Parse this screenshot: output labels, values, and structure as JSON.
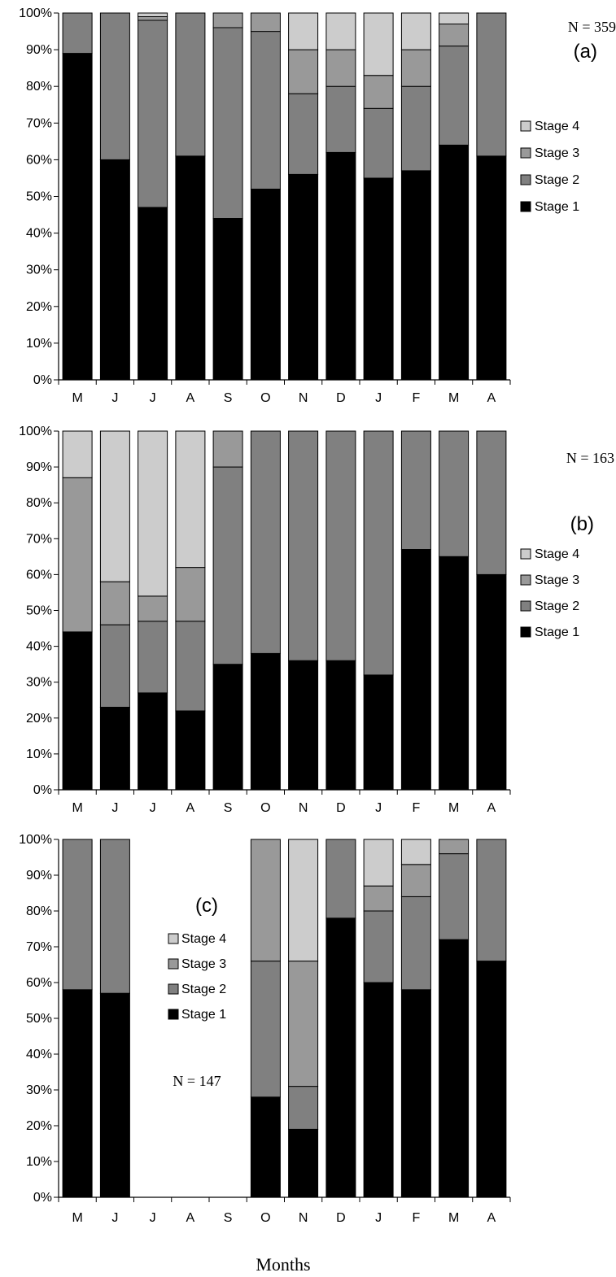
{
  "colors": {
    "stage1": "#000000",
    "stage2": "#808080",
    "stage3": "#999999",
    "stage4": "#cccccc",
    "axis": "#000000"
  },
  "x_title": "Months",
  "chart_data": [
    {
      "type": "bar",
      "stacked": true,
      "panel": "(a)",
      "n_label": "N = 359",
      "categories": [
        "M",
        "J",
        "J",
        "A",
        "S",
        "O",
        "N",
        "D",
        "J",
        "F",
        "M",
        "A"
      ],
      "ylim": [
        0,
        100
      ],
      "yticks": [
        "0%",
        "10%",
        "20%",
        "30%",
        "40%",
        "50%",
        "60%",
        "70%",
        "80%",
        "90%",
        "100%"
      ],
      "legend": [
        "Stage 4",
        "Stage 3",
        "Stage 2",
        "Stage 1"
      ],
      "series": [
        {
          "name": "Stage 1",
          "values": [
            89,
            60,
            47,
            61,
            44,
            52,
            56,
            62,
            55,
            57,
            64,
            61
          ]
        },
        {
          "name": "Stage 2",
          "values": [
            11,
            40,
            51,
            39,
            52,
            43,
            22,
            18,
            19,
            23,
            27,
            39
          ]
        },
        {
          "name": "Stage 3",
          "values": [
            0,
            0,
            1,
            0,
            4,
            5,
            12,
            10,
            9,
            10,
            6,
            0
          ]
        },
        {
          "name": "Stage 4",
          "values": [
            0,
            0,
            1,
            0,
            0,
            0,
            10,
            10,
            17,
            10,
            3,
            0
          ]
        }
      ]
    },
    {
      "type": "bar",
      "stacked": true,
      "panel": "(b)",
      "n_label": "N = 163",
      "categories": [
        "M",
        "J",
        "J",
        "A",
        "S",
        "O",
        "N",
        "D",
        "J",
        "F",
        "M",
        "A"
      ],
      "ylim": [
        0,
        100
      ],
      "yticks": [
        "0%",
        "10%",
        "20%",
        "30%",
        "40%",
        "50%",
        "60%",
        "70%",
        "80%",
        "90%",
        "100%"
      ],
      "legend": [
        "Stage 4",
        "Stage 3",
        "Stage 2",
        "Stage 1"
      ],
      "series": [
        {
          "name": "Stage 1",
          "values": [
            44,
            23,
            27,
            22,
            35,
            38,
            36,
            36,
            32,
            67,
            65,
            60
          ]
        },
        {
          "name": "Stage 2",
          "values": [
            0,
            23,
            20,
            25,
            55,
            62,
            64,
            64,
            68,
            33,
            35,
            40
          ]
        },
        {
          "name": "Stage 3",
          "values": [
            43,
            12,
            7,
            15,
            10,
            0,
            0,
            0,
            0,
            0,
            0,
            0
          ]
        },
        {
          "name": "Stage 4",
          "values": [
            13,
            42,
            46,
            38,
            0,
            0,
            0,
            0,
            0,
            0,
            0,
            0
          ]
        }
      ]
    },
    {
      "type": "bar",
      "stacked": true,
      "panel": "(c)",
      "n_label": "N = 147",
      "categories": [
        "M",
        "J",
        "J",
        "A",
        "S",
        "O",
        "N",
        "D",
        "J",
        "F",
        "M",
        "A"
      ],
      "ylim": [
        0,
        100
      ],
      "yticks": [
        "0%",
        "10%",
        "20%",
        "30%",
        "40%",
        "50%",
        "60%",
        "70%",
        "80%",
        "90%",
        "100%"
      ],
      "legend": [
        "Stage 4",
        "Stage 3",
        "Stage 2",
        "Stage 1"
      ],
      "series": [
        {
          "name": "Stage 1",
          "values": [
            58,
            57,
            0,
            0,
            0,
            28,
            19,
            78,
            60,
            58,
            72,
            66
          ]
        },
        {
          "name": "Stage 2",
          "values": [
            42,
            43,
            0,
            0,
            0,
            38,
            12,
            22,
            20,
            26,
            24,
            34
          ]
        },
        {
          "name": "Stage 3",
          "values": [
            0,
            0,
            0,
            0,
            0,
            34,
            35,
            0,
            7,
            9,
            4,
            0
          ]
        },
        {
          "name": "Stage 4",
          "values": [
            0,
            0,
            0,
            0,
            0,
            0,
            34,
            0,
            13,
            7,
            0,
            0
          ]
        }
      ]
    }
  ]
}
